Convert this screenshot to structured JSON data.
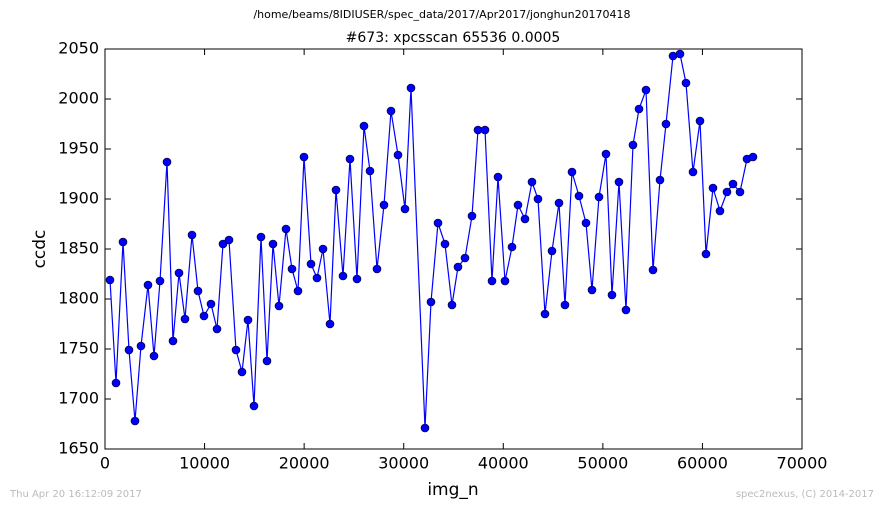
{
  "chart_data": {
    "type": "line",
    "suptitle": "/home/beams/8IDIUSER/spec_data/2017/Apr2017/jonghun20170418",
    "title": "#673: xpcsscan 65536 0.0005",
    "xlabel": "img_n",
    "ylabel": "ccdc",
    "footer_left": "Thu Apr 20 16:12:09 2017",
    "footer_right": "spec2nexus, (C) 2014-2017",
    "color": "#0000ff",
    "x": [
      502,
      1105,
      1808,
      2410,
      3013,
      3615,
      4318,
      4921,
      5524,
      6227,
      6829,
      7432,
      8034,
      8737,
      9340,
      9942,
      10645,
      11248,
      11850,
      12453,
      13156,
      13759,
      14361,
      14964,
      15667,
      16270,
      16872,
      17475,
      18178,
      18780,
      19383,
      19986,
      20689,
      21291,
      21894,
      22597,
      23199,
      23902,
      24605,
      25308,
      26011,
      26614,
      27317,
      28020,
      28723,
      29426,
      30129,
      30731,
      32137,
      32740,
      33443,
      34146,
      34849,
      35451,
      36155,
      36858,
      37460,
      38163,
      38866,
      39469,
      40172,
      40875,
      41477,
      42180,
      42883,
      43486,
      44189,
      44892,
      45595,
      46197,
      46900,
      47603,
      48306,
      48909,
      49612,
      50315,
      50917,
      51620,
      52323,
      53026,
      53630,
      54333,
      55036,
      55739,
      56341,
      57044,
      57747,
      58350,
      59053,
      59756,
      60358,
      61061,
      61764,
      62467,
      63070,
      63773,
      64476,
      65078
    ],
    "values": [
      1819,
      1716,
      1857,
      1749,
      1678,
      1753,
      1814,
      1743,
      1818,
      1937,
      1758,
      1826,
      1780,
      1864,
      1808,
      1783,
      1795,
      1770,
      1855,
      1859,
      1749,
      1727,
      1779,
      1693,
      1862,
      1738,
      1855,
      1793,
      1870,
      1830,
      1808,
      1942,
      1835,
      1821,
      1850,
      1775,
      1909,
      1823,
      1940,
      1820,
      1973,
      1928,
      1830,
      1894,
      1988,
      1944,
      1890,
      2011,
      1671,
      1797,
      1876,
      1855,
      1794,
      1832,
      1841,
      1883,
      1969,
      1969,
      1818,
      1922,
      1818,
      1852,
      1894,
      1880,
      1917,
      1900,
      1785,
      1848,
      1896,
      1794,
      1927,
      1903,
      1876,
      1809,
      1902,
      1945,
      1804,
      1917,
      1789,
      1954,
      1990,
      2009,
      1829,
      1919,
      1975,
      2043,
      2045,
      2016,
      1927,
      1978,
      1845,
      1911,
      1888,
      1907,
      1915,
      1907,
      1940,
      1942
    ],
    "xlim": [
      0,
      70000
    ],
    "xticks": [
      0,
      10000,
      20000,
      30000,
      40000,
      50000,
      60000,
      70000
    ],
    "ylim": [
      1650,
      2050
    ],
    "yticks": [
      1650,
      1700,
      1750,
      1800,
      1850,
      1900,
      1950,
      2000,
      2050
    ]
  }
}
